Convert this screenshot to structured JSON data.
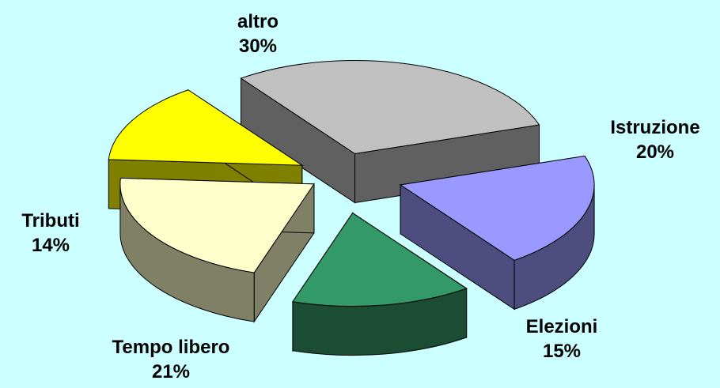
{
  "chart_data": {
    "type": "pie",
    "title": "",
    "three_d": true,
    "exploded": true,
    "legend": "none",
    "slices": [
      {
        "label": "Istruzione",
        "value": 20,
        "pct": "20%",
        "color": "#9999FF",
        "side": "#4D4D80"
      },
      {
        "label": "Elezioni",
        "value": 15,
        "pct": "15%",
        "color": "#339966",
        "side": "#1A4D33"
      },
      {
        "label": "Tempo libero",
        "value": 21,
        "pct": "21%",
        "color": "#FFFFCC",
        "side": "#808066"
      },
      {
        "label": "Tributi",
        "value": 14,
        "pct": "14%",
        "color": "#FFFF00",
        "side": "#808000"
      },
      {
        "label": "altro",
        "value": 30,
        "pct": "30%",
        "color": "#C0C0C0",
        "side": "#606060"
      }
    ]
  },
  "colors": {
    "background": "#CCFFFF",
    "outline": "#000000"
  }
}
